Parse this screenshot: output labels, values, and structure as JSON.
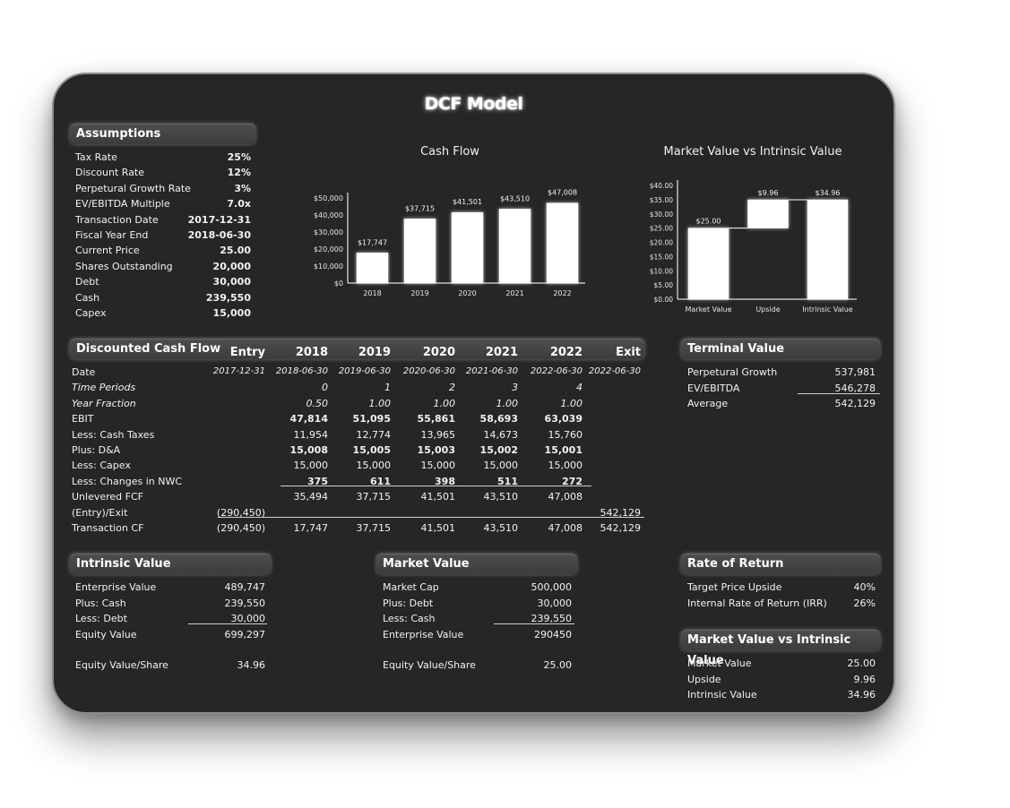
{
  "title": "DCF Model",
  "assumptions": {
    "header": "Assumptions",
    "items": [
      {
        "label": "Tax Rate",
        "value": "25%"
      },
      {
        "label": "Discount Rate",
        "value": "12%"
      },
      {
        "label": "Perpetural Growth Rate",
        "value": "3%"
      },
      {
        "label": "EV/EBITDA Multiple",
        "value": "7.0x"
      },
      {
        "label": "Transaction Date",
        "value": "2017-12-31"
      },
      {
        "label": "Fiscal Year End",
        "value": "2018-06-30"
      },
      {
        "label": "Current Price",
        "value": "25.00"
      },
      {
        "label": "Shares Outstanding",
        "value": "20,000"
      },
      {
        "label": "Debt",
        "value": "30,000"
      },
      {
        "label": "Cash",
        "value": "239,550"
      },
      {
        "label": "Capex",
        "value": "15,000"
      }
    ]
  },
  "chart_data": [
    {
      "type": "bar",
      "title": "Cash Flow",
      "categories": [
        "2018",
        "2019",
        "2020",
        "2021",
        "2022"
      ],
      "values": [
        17747,
        37715,
        41501,
        43510,
        47008
      ],
      "data_labels": [
        "$17,747",
        "$37,715",
        "$41,501",
        "$43,510",
        "$47,008"
      ],
      "ylim": [
        0,
        50000
      ],
      "yticks": [
        "$0",
        "$10,000",
        "$20,000",
        "$30,000",
        "$40,000",
        "$50,000"
      ],
      "bar_color": "#ffffff"
    },
    {
      "type": "bar",
      "subtype": "waterfall",
      "title": "Market Value vs Intrinsic Value",
      "categories": [
        "Market Value",
        "Upside",
        "Intrinsic Value"
      ],
      "values": [
        25.0,
        9.96,
        34.96
      ],
      "bases": [
        0,
        25.0,
        0
      ],
      "data_labels": [
        "$25.00",
        "$9.96",
        "$34.96"
      ],
      "ylim": [
        0,
        40
      ],
      "yticks": [
        "$0.00",
        "$5.00",
        "$10.00",
        "$15.00",
        "$20.00",
        "$25.00",
        "$30.00",
        "$35.00",
        "$40.00"
      ],
      "bar_color": "#ffffff"
    }
  ],
  "dcf": {
    "header": "Discounted Cash Flow",
    "columns": [
      "Entry",
      "2018",
      "2019",
      "2020",
      "2021",
      "2022",
      "Exit"
    ],
    "rows": [
      {
        "label": "Date",
        "style": "",
        "cells": [
          "2017-12-31",
          "2018-06-30",
          "2019-06-30",
          "2020-06-30",
          "2021-06-30",
          "2022-06-30",
          "2022-06-30"
        ]
      },
      {
        "label": "Time Periods",
        "style": "i",
        "cells": [
          "",
          "0",
          "1",
          "2",
          "3",
          "4",
          ""
        ]
      },
      {
        "label": "Year Fraction",
        "style": "i",
        "cells": [
          "",
          "0.50",
          "1.00",
          "1.00",
          "1.00",
          "1.00",
          ""
        ]
      },
      {
        "label": "EBIT",
        "style": "b",
        "cells": [
          "",
          "47,814",
          "51,095",
          "55,861",
          "58,693",
          "63,039",
          ""
        ]
      },
      {
        "label": "Less: Cash Taxes",
        "style": "",
        "cells": [
          "",
          "11,954",
          "12,774",
          "13,965",
          "14,673",
          "15,760",
          ""
        ]
      },
      {
        "label": "Plus: D&A",
        "style": "b",
        "cells": [
          "",
          "15,008",
          "15,005",
          "15,003",
          "15,002",
          "15,001",
          ""
        ]
      },
      {
        "label": "Less: Capex",
        "style": "",
        "cells": [
          "",
          "15,000",
          "15,000",
          "15,000",
          "15,000",
          "15,000",
          ""
        ]
      },
      {
        "label": "Less: Changes in NWC",
        "style": "b",
        "cells": [
          "",
          "375",
          "611",
          "398",
          "511",
          "272",
          ""
        ]
      },
      {
        "label": "Unlevered FCF",
        "style": "",
        "cells": [
          "",
          "35,494",
          "37,715",
          "41,501",
          "43,510",
          "47,008",
          ""
        ]
      },
      {
        "label": "(Entry)/Exit",
        "style": "",
        "cells": [
          "(290,450)",
          "",
          "",
          "",
          "",
          "",
          "542,129"
        ]
      },
      {
        "label": "Transaction CF",
        "style": "",
        "cells": [
          "(290,450)",
          "17,747",
          "37,715",
          "41,501",
          "43,510",
          "47,008",
          "542,129"
        ]
      }
    ]
  },
  "terminal": {
    "header": "Terminal Value",
    "items": [
      {
        "label": "Perpetural Growth",
        "value": "537,981"
      },
      {
        "label": "EV/EBITDA",
        "value": "546,278"
      },
      {
        "label": "Average",
        "value": "542,129"
      }
    ]
  },
  "intrinsic": {
    "header": "Intrinsic Value",
    "items": [
      {
        "label": "Enterprise Value",
        "value": "489,747"
      },
      {
        "label": "Plus: Cash",
        "value": "239,550"
      },
      {
        "label": "Less: Debt",
        "value": "30,000"
      },
      {
        "label": "Equity Value",
        "value": "699,297"
      }
    ],
    "per_share": {
      "label": "Equity Value/Share",
      "value": "34.96"
    }
  },
  "market": {
    "header": "Market Value",
    "items": [
      {
        "label": "Market Cap",
        "value": "500,000"
      },
      {
        "label": "Plus: Debt",
        "value": "30,000"
      },
      {
        "label": "Less: Cash",
        "value": "239,550"
      },
      {
        "label": "Enterprise Value",
        "value": "290450"
      }
    ],
    "per_share": {
      "label": "Equity Value/Share",
      "value": "25.00"
    }
  },
  "ror": {
    "header": "Rate of Return",
    "items": [
      {
        "label": "Target Price Upside",
        "value": "40%"
      },
      {
        "label": "Internal Rate of Return (IRR)",
        "value": "26%"
      }
    ]
  },
  "mvi": {
    "header": "Market Value vs Intrinsic Value",
    "items": [
      {
        "label": "Market Value",
        "value": "25.00"
      },
      {
        "label": "Upside",
        "value": "9.96"
      },
      {
        "label": "Intrinsic Value",
        "value": "34.96"
      }
    ]
  }
}
